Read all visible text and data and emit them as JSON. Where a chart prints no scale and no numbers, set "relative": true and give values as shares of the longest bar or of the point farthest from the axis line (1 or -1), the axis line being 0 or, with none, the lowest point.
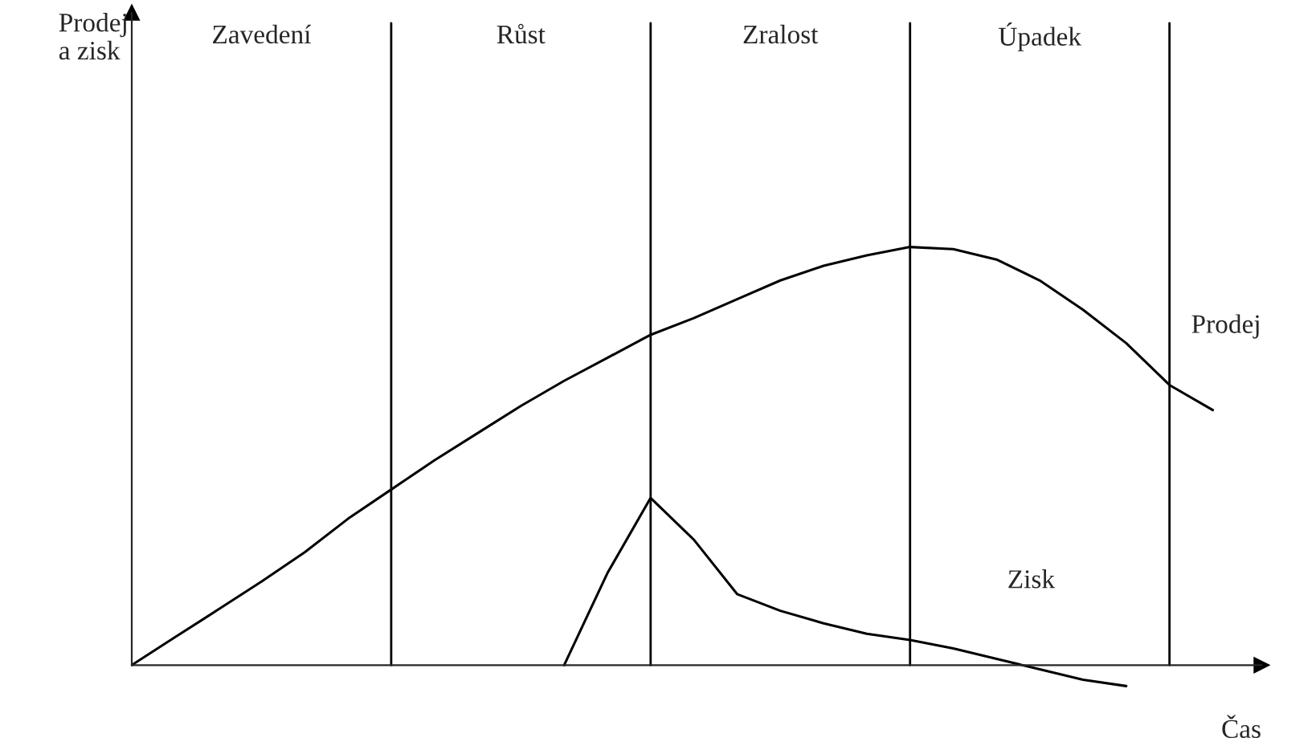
{
  "chart_data": {
    "type": "line",
    "relative": true,
    "xlabel": "Čas",
    "grid": "x",
    "categories": [
      null,
      null,
      null,
      null,
      null,
      null,
      null,
      null,
      null,
      null,
      null,
      null,
      null,
      null,
      null,
      null,
      null,
      null,
      null,
      null,
      null,
      null,
      null,
      null,
      null,
      null
    ],
    "series": [
      {
        "name": "Prodej",
        "color": "#000000",
        "values": [
          0,
          0.067,
          0.133,
          0.2,
          0.27,
          0.35,
          0.42,
          0.49,
          0.555,
          0.62,
          0.68,
          0.735,
          0.79,
          0.83,
          0.875,
          0.92,
          0.955,
          0.98,
          1.0,
          0.995,
          0.97,
          0.92,
          0.85,
          0.77,
          0.67,
          0.61
        ]
      },
      {
        "name": "Zisk",
        "color": "#000000",
        "values": [
          null,
          null,
          null,
          null,
          null,
          null,
          null,
          null,
          null,
          null,
          0,
          0.22,
          0.4,
          0.3,
          0.17,
          0.13,
          0.1,
          0.075,
          0.06,
          0.04,
          0.015,
          -0.01,
          -0.035,
          -0.05,
          null,
          null
        ]
      }
    ],
    "annotations": [
      "Zavedení",
      "Růst",
      "Zralost",
      "Úpadek",
      "Prodej\na zisk"
    ]
  }
}
